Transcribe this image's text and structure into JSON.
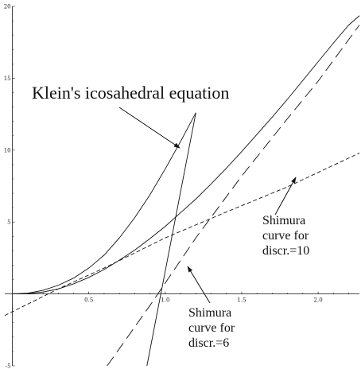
{
  "chart_data": {
    "type": "line",
    "title": "",
    "xlabel": "",
    "ylabel": "",
    "xlim": [
      -0.05,
      2.27
    ],
    "ylim": [
      -5,
      20
    ],
    "x_ticks": [
      {
        "value": 0.5,
        "label": "0.5"
      },
      {
        "value": 1.0,
        "label": "1.0"
      },
      {
        "value": 1.5,
        "label": "1.5"
      },
      {
        "value": 2.0,
        "label": "2.0"
      }
    ],
    "y_ticks": [
      {
        "value": -5,
        "label": "-5"
      },
      {
        "value": 5,
        "label": "5"
      },
      {
        "value": 10,
        "label": "10"
      },
      {
        "value": 15,
        "label": "15"
      },
      {
        "value": 20,
        "label": "20"
      }
    ],
    "grid": false,
    "series": [
      {
        "style": "solid",
        "x": [
          0.0,
          0.1,
          0.2,
          0.3,
          0.4,
          0.5,
          0.6,
          0.7,
          0.8,
          0.9,
          1.0,
          1.1,
          1.2
        ],
        "y": [
          0.0,
          0.05,
          0.25,
          0.6,
          1.1,
          1.8,
          2.7,
          3.9,
          5.3,
          6.9,
          8.7,
          10.6,
          12.6
        ]
      },
      {
        "style": "solid",
        "x": [
          0.0,
          0.1,
          0.2,
          0.3,
          0.4,
          0.5,
          0.6,
          0.7,
          0.8,
          0.9,
          1.0,
          1.1,
          1.2,
          1.3,
          1.4,
          1.5,
          1.6,
          1.7,
          1.8,
          1.9,
          2.0,
          2.1,
          2.2,
          2.27
        ],
        "y": [
          0.0,
          0.02,
          0.13,
          0.35,
          0.7,
          1.15,
          1.7,
          2.35,
          3.05,
          3.85,
          4.7,
          5.65,
          6.6,
          7.65,
          8.75,
          9.9,
          11.1,
          12.3,
          13.55,
          14.85,
          16.15,
          17.45,
          18.7,
          19.35
        ]
      },
      {
        "style": "solid",
        "x": [
          0.88,
          1.2
        ],
        "y": [
          -5.0,
          12.6
        ]
      },
      {
        "style": "dashed",
        "x": [
          -0.05,
          0.3,
          0.6,
          1.0,
          1.4,
          1.8,
          2.27
        ],
        "y": [
          -1.5,
          0.35,
          1.8,
          3.9,
          5.7,
          7.45,
          9.8
        ]
      },
      {
        "style": "long-dashed",
        "x": [
          0.62,
          0.9,
          1.2,
          1.5,
          1.8,
          2.0,
          2.27
        ],
        "y": [
          -5.0,
          -0.8,
          3.9,
          8.2,
          12.2,
          14.8,
          18.7
        ]
      }
    ],
    "annotations": [
      {
        "text": "Klein's icosahedral equation",
        "lines": [
          "Klein's icosahedral equation"
        ]
      },
      {
        "text": "Shimura curve for discr.=10",
        "lines": [
          "Shimura",
          "curve for",
          "discr.=10"
        ]
      },
      {
        "text": "Shimura curve for discr.=6",
        "lines": [
          "Shimura",
          "curve for",
          "discr.=6"
        ]
      }
    ]
  }
}
